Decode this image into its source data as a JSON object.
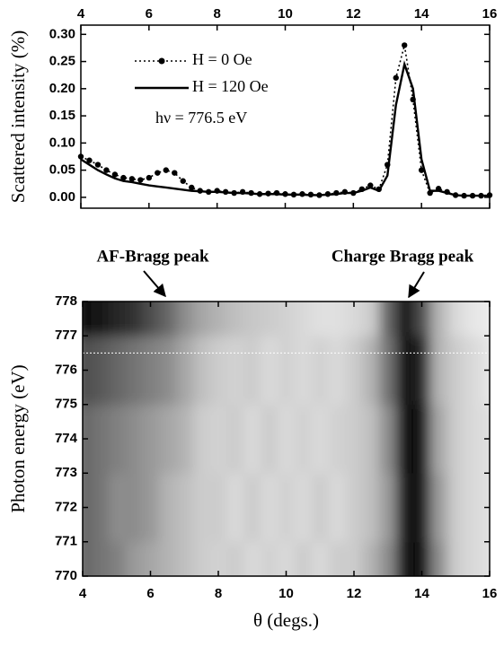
{
  "chart_data": [
    {
      "type": "line",
      "ylabel": "Scattered intensity (%)",
      "annotation": "hν = 776.5 eV",
      "x": [
        4,
        4.25,
        4.5,
        4.75,
        5,
        5.25,
        5.5,
        5.75,
        6,
        6.25,
        6.5,
        6.75,
        7,
        7.25,
        7.5,
        7.75,
        8,
        8.25,
        8.5,
        8.75,
        9,
        9.25,
        9.5,
        9.75,
        10,
        10.25,
        10.5,
        10.75,
        11,
        11.25,
        11.5,
        11.75,
        12,
        12.25,
        12.5,
        12.75,
        13,
        13.25,
        13.5,
        13.75,
        14,
        14.25,
        14.5,
        14.75,
        15,
        15.25,
        15.5,
        15.75,
        16
      ],
      "series": [
        {
          "name": "H = 0 Oe",
          "color": "#000",
          "style": "dotted",
          "marker": true,
          "values": [
            0.075,
            0.068,
            0.06,
            0.05,
            0.042,
            0.036,
            0.034,
            0.032,
            0.036,
            0.045,
            0.05,
            0.045,
            0.03,
            0.018,
            0.012,
            0.01,
            0.012,
            0.01,
            0.008,
            0.01,
            0.008,
            0.006,
            0.007,
            0.008,
            0.006,
            0.005,
            0.006,
            0.005,
            0.004,
            0.006,
            0.008,
            0.01,
            0.008,
            0.015,
            0.022,
            0.015,
            0.06,
            0.22,
            0.28,
            0.18,
            0.05,
            0.008,
            0.016,
            0.01,
            0.004,
            0.003,
            0.003,
            0.003,
            0.004
          ]
        },
        {
          "name": "H = 120 Oe",
          "color": "#000",
          "style": "solid",
          "marker": false,
          "values": [
            0.07,
            0.06,
            0.05,
            0.042,
            0.035,
            0.03,
            0.028,
            0.025,
            0.022,
            0.02,
            0.018,
            0.016,
            0.014,
            0.012,
            0.011,
            0.01,
            0.01,
            0.009,
            0.008,
            0.008,
            0.007,
            0.006,
            0.006,
            0.006,
            0.005,
            0.005,
            0.005,
            0.004,
            0.004,
            0.005,
            0.006,
            0.008,
            0.008,
            0.012,
            0.018,
            0.012,
            0.04,
            0.17,
            0.245,
            0.2,
            0.07,
            0.012,
            0.012,
            0.008,
            0.004,
            0.003,
            0.003,
            0.003,
            0.003
          ]
        }
      ],
      "xlim": [
        4,
        16
      ],
      "xticks": [
        4,
        6,
        8,
        10,
        12,
        14,
        16
      ],
      "ylim": [
        -0.02,
        0.317
      ],
      "yticks": [
        {
          "value": 0,
          "label": "0.00"
        },
        {
          "value": 0.05,
          "label": "0.05"
        },
        {
          "value": 0.1,
          "label": "0.10"
        },
        {
          "value": 0.15,
          "label": "0.15"
        },
        {
          "value": 0.2,
          "label": "0.20"
        },
        {
          "value": 0.25,
          "label": "0.25"
        },
        {
          "value": 0.3,
          "label": "0.30"
        }
      ]
    },
    {
      "type": "heatmap",
      "xlabel": "θ (degs.)",
      "ylabel": "Photon energy (eV)",
      "annotations": [
        "AF-Bragg peak",
        "Charge Bragg peak"
      ],
      "x": [
        4,
        4.5,
        5,
        5.5,
        6,
        6.5,
        7,
        7.5,
        8,
        8.5,
        9,
        9.5,
        10,
        10.5,
        11,
        11.5,
        12,
        12.5,
        13,
        13.5,
        14,
        14.5,
        15,
        15.5,
        16
      ],
      "y": [
        770,
        772,
        774,
        776,
        778
      ],
      "z": [
        [
          0.6,
          0.55,
          0.5,
          0.4,
          0.35,
          0.3,
          0.25,
          0.2,
          0.18,
          0.2,
          0.15,
          0.18,
          0.15,
          0.2,
          0.15,
          0.2,
          0.2,
          0.3,
          0.45,
          0.9,
          0.95,
          0.45,
          0.2,
          0.15,
          0.12
        ],
        [
          0.6,
          0.55,
          0.45,
          0.45,
          0.4,
          0.3,
          0.25,
          0.2,
          0.2,
          0.15,
          0.2,
          0.15,
          0.18,
          0.15,
          0.2,
          0.15,
          0.2,
          0.25,
          0.4,
          0.9,
          0.9,
          0.4,
          0.2,
          0.15,
          0.12
        ],
        [
          0.6,
          0.55,
          0.5,
          0.45,
          0.4,
          0.35,
          0.3,
          0.2,
          0.18,
          0.2,
          0.15,
          0.2,
          0.15,
          0.18,
          0.15,
          0.18,
          0.2,
          0.25,
          0.45,
          0.95,
          0.9,
          0.35,
          0.2,
          0.15,
          0.12
        ],
        [
          0.7,
          0.65,
          0.6,
          0.55,
          0.5,
          0.45,
          0.35,
          0.25,
          0.2,
          0.18,
          0.2,
          0.15,
          0.18,
          0.15,
          0.18,
          0.15,
          0.2,
          0.3,
          0.55,
          0.95,
          0.85,
          0.3,
          0.2,
          0.15,
          0.1
        ],
        [
          0.95,
          0.9,
          0.85,
          0.8,
          0.7,
          0.6,
          0.45,
          0.35,
          0.3,
          0.25,
          0.22,
          0.2,
          0.18,
          0.15,
          0.12,
          0.12,
          0.15,
          0.2,
          0.6,
          0.95,
          0.7,
          0.3,
          0.15,
          0.1,
          0.08
        ]
      ],
      "hline": 776.5,
      "xlim": [
        4,
        16
      ],
      "xticks": [
        4,
        6,
        8,
        10,
        12,
        14,
        16
      ],
      "ylim": [
        770,
        778
      ],
      "yticks": [
        770,
        771,
        772,
        773,
        774,
        775,
        776,
        777,
        778
      ]
    }
  ]
}
